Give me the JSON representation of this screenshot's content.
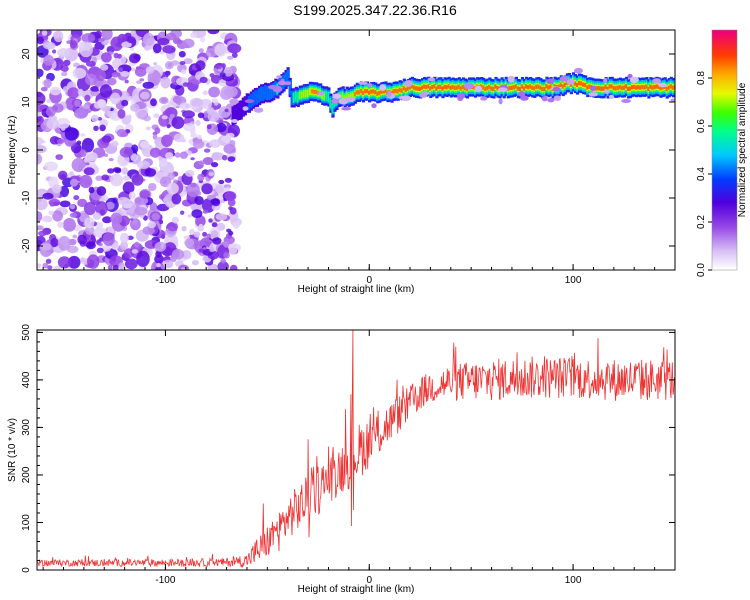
{
  "title": "S199.2025.347.22.36.R16",
  "chart_data": [
    {
      "type": "heatmap",
      "xlabel": "Height of straight line (km)",
      "ylabel": "Frequency (Hz)",
      "xlim": [
        -163,
        150
      ],
      "ylim": [
        -25,
        25
      ],
      "xticks": [
        -100,
        0,
        100
      ],
      "yticks": [
        -20,
        -10,
        0,
        10,
        20
      ],
      "grid": false,
      "colorbar": {
        "label": "Normalized spectral amplitude",
        "range": [
          0.0,
          1.0
        ],
        "ticks": [
          "0.0",
          "0.2",
          "0.4",
          "0.6",
          "0.8"
        ],
        "tick_values": [
          0.0,
          0.2,
          0.4,
          0.6,
          0.8
        ]
      },
      "noise_region_x": [
        -163,
        -67
      ],
      "signal_track": {
        "x": [
          -67,
          -62,
          -55,
          -50,
          -45,
          -40,
          -38,
          -35,
          -30,
          -25,
          -20,
          -18,
          -15,
          -10,
          -5,
          0,
          5,
          10,
          20,
          30,
          40,
          50,
          60,
          70,
          80,
          90,
          100,
          110,
          120,
          130,
          140,
          150
        ],
        "freq_hz": [
          7,
          9,
          11,
          12,
          13,
          15,
          11,
          11,
          12,
          12,
          11,
          9,
          11,
          11,
          12,
          12,
          12,
          12,
          13,
          13,
          13,
          13,
          13,
          13,
          13,
          13,
          14,
          13,
          13,
          13,
          13,
          13
        ],
        "peak_amplitude": [
          0.3,
          0.35,
          0.4,
          0.45,
          0.5,
          0.45,
          0.45,
          0.6,
          0.75,
          0.8,
          0.55,
          0.5,
          0.6,
          0.7,
          0.85,
          0.9,
          0.9,
          0.85,
          0.9,
          0.95,
          0.9,
          0.85,
          0.9,
          0.95,
          0.9,
          0.9,
          0.95,
          0.95,
          0.9,
          0.95,
          0.9,
          0.9
        ]
      }
    },
    {
      "type": "line",
      "xlabel": "Height of straight line (km)",
      "ylabel": "SNR (10 * v/v)",
      "xlim": [
        -163,
        150
      ],
      "ylim": [
        0,
        505
      ],
      "xticks": [
        -100,
        0,
        100
      ],
      "yticks": [
        0,
        100,
        200,
        300,
        400,
        500
      ],
      "grid": false,
      "color": "#ee3333",
      "envelope": {
        "x": [
          -163,
          -100,
          -70,
          -60,
          -55,
          -50,
          -45,
          -40,
          -35,
          -30,
          -25,
          -20,
          -15,
          -10,
          -5,
          0,
          5,
          10,
          15,
          20,
          25,
          30,
          40,
          60,
          80,
          100,
          120,
          140,
          150
        ],
        "baseline": [
          15,
          15,
          16,
          20,
          40,
          60,
          80,
          110,
          130,
          150,
          170,
          190,
          210,
          230,
          250,
          270,
          290,
          310,
          330,
          350,
          370,
          385,
          395,
          400,
          405,
          405,
          400,
          400,
          400
        ],
        "spread": [
          14,
          16,
          18,
          30,
          60,
          70,
          90,
          90,
          100,
          100,
          110,
          100,
          110,
          120,
          120,
          110,
          100,
          90,
          80,
          80,
          70,
          70,
          80,
          90,
          90,
          90,
          90,
          90,
          90
        ]
      },
      "spikes": [
        {
          "x": -8,
          "y": 505
        },
        {
          "x": -9,
          "y": 370
        },
        {
          "x": -30,
          "y": 275
        },
        {
          "x": -52,
          "y": 140
        }
      ]
    }
  ]
}
